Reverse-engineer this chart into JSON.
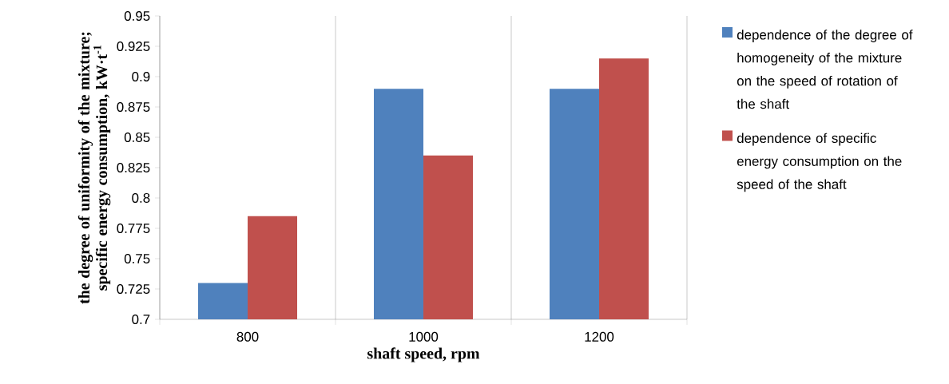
{
  "chart_data": {
    "type": "bar",
    "xlabel": "shaft speed, rpm",
    "ylabel": "the degree of uniformity of the mixture; specific energy consumption, kW·t$^{-1}$",
    "categories": [
      "800",
      "1000",
      "1200"
    ],
    "series": [
      {
        "name": "dependence of the degree of homogeneity of the mixture on the speed of rotation of the shaft",
        "color": "#4f81bd",
        "values": [
          0.73,
          0.89,
          0.89
        ]
      },
      {
        "name": "dependence of specific energy consumption on the speed of the shaft",
        "color": "#c0504d",
        "values": [
          0.785,
          0.835,
          0.915
        ]
      }
    ],
    "ylim": [
      0.7,
      0.95
    ],
    "yticks": [
      0.7,
      0.725,
      0.75,
      0.775,
      0.8,
      0.825,
      0.85,
      0.875,
      0.9,
      0.925,
      0.95
    ],
    "grid": "x",
    "legend": "right"
  }
}
